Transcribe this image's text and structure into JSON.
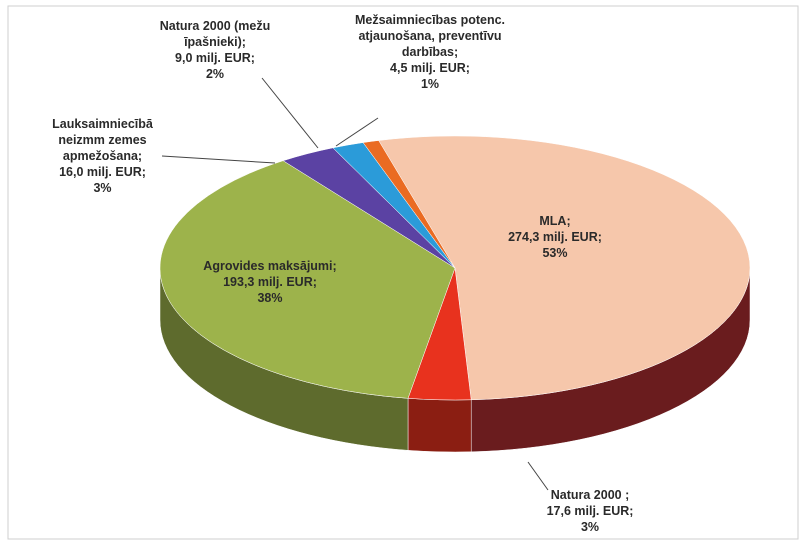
{
  "chart_data": {
    "type": "pie3d",
    "categories": [
      "MLA;",
      "Natura 2000 ;",
      "Agrovides maksājumi;",
      "Lauksaimniecībā neizmm zemes apmežošana;",
      "Natura 2000 (mežu īpašnieki);",
      "Mežsaimniecības potenc. atjaunošana, preventīvu darbības;"
    ],
    "values": [
      274.3,
      17.6,
      193.3,
      16.0,
      9.0,
      4.5
    ],
    "value_labels": [
      "274,3 milj. EUR;",
      "17,6 milj. EUR;",
      "193,3 milj. EUR;",
      "16,0 milj. EUR;",
      "9,0 milj. EUR;",
      "4,5 milj. EUR;"
    ],
    "percents": [
      53,
      3,
      38,
      3,
      2,
      1
    ],
    "percent_labels": [
      "53%",
      "3%",
      "38%",
      "3%",
      "2%",
      "1%"
    ],
    "colors": [
      "#f6c7ab",
      "#e8321e",
      "#9db34b",
      "#5b42a3",
      "#2b9bd9",
      "#ea6b22"
    ]
  }
}
